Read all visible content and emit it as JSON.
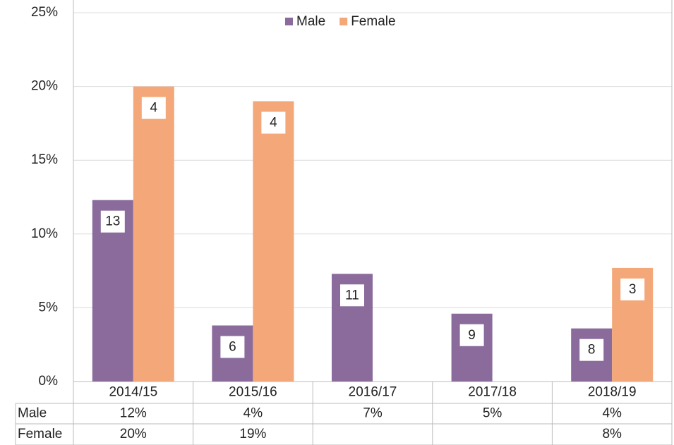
{
  "chart_data": {
    "type": "bar",
    "categories": [
      "2014/15",
      "2015/16",
      "2016/17",
      "2017/18",
      "2018/19"
    ],
    "series": [
      {
        "name": "Male",
        "color": "#8a6b9c",
        "values": [
          12.3,
          3.8,
          7.3,
          4.6,
          3.6
        ],
        "value_labels": [
          "12%",
          "4%",
          "7%",
          "5%",
          "4%"
        ],
        "counts": [
          13,
          6,
          11,
          9,
          8
        ]
      },
      {
        "name": "Female",
        "color": "#f4a778",
        "values": [
          20,
          19,
          null,
          null,
          7.7
        ],
        "value_labels": [
          "20%",
          "19%",
          null,
          null,
          "8%"
        ],
        "counts": [
          4,
          4,
          null,
          null,
          3
        ]
      }
    ],
    "ylim": [
      0,
      25
    ],
    "yticks": [
      {
        "value": 0,
        "label": "0%"
      },
      {
        "value": 5,
        "label": "5%"
      },
      {
        "value": 10,
        "label": "10%"
      },
      {
        "value": 15,
        "label": "15%"
      },
      {
        "value": 20,
        "label": "20%"
      },
      {
        "value": 25,
        "label": "25%"
      }
    ],
    "grid": true,
    "legend": "top"
  }
}
